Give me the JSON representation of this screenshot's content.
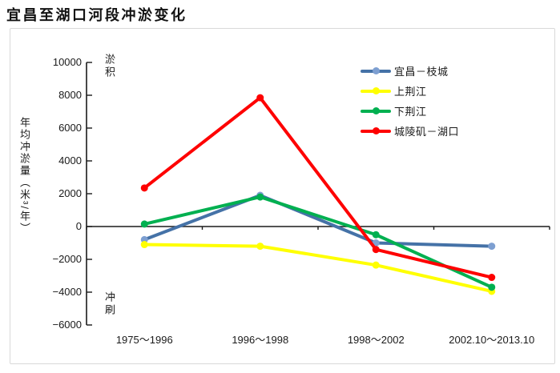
{
  "page": {
    "title": "宜昌至湖口河段冲淤变化"
  },
  "chart_data": {
    "type": "line",
    "title": "宜昌至湖口河段冲淤变化",
    "categories": [
      "1975～1996",
      "1996～1998",
      "1998～2002",
      "2002.10～2013.10"
    ],
    "series": [
      {
        "name": "宜昌－枝城",
        "color": "#4572a7",
        "marker_color": "#7d9fd1",
        "values": [
          -800,
          1900,
          -1000,
          -1200
        ]
      },
      {
        "name": "上荆江",
        "color": "#ffff00",
        "marker_color": "#ffff00",
        "values": [
          -1100,
          -1200,
          -2350,
          -3950
        ]
      },
      {
        "name": "下荆江",
        "color": "#00b050",
        "marker_color": "#00b050",
        "values": [
          150,
          1800,
          -500,
          -3700
        ]
      },
      {
        "name": "城陵矶－湖口",
        "color": "#fe0000",
        "marker_color": "#fe0000",
        "values": [
          2350,
          7850,
          -1400,
          -3100
        ]
      }
    ],
    "ylabel": "年均冲淤量（米³/年）",
    "xlabel": "",
    "ylim": [
      -6000,
      10000
    ],
    "ytick_step": 2000,
    "yticks": [
      10000,
      8000,
      6000,
      4000,
      2000,
      0,
      -2000,
      -4000,
      -6000
    ],
    "annotations": {
      "top": "淤积",
      "bottom": "冲刷"
    },
    "legend_position": "top-right",
    "grid": false,
    "axis_color": "#1a1a1a"
  }
}
